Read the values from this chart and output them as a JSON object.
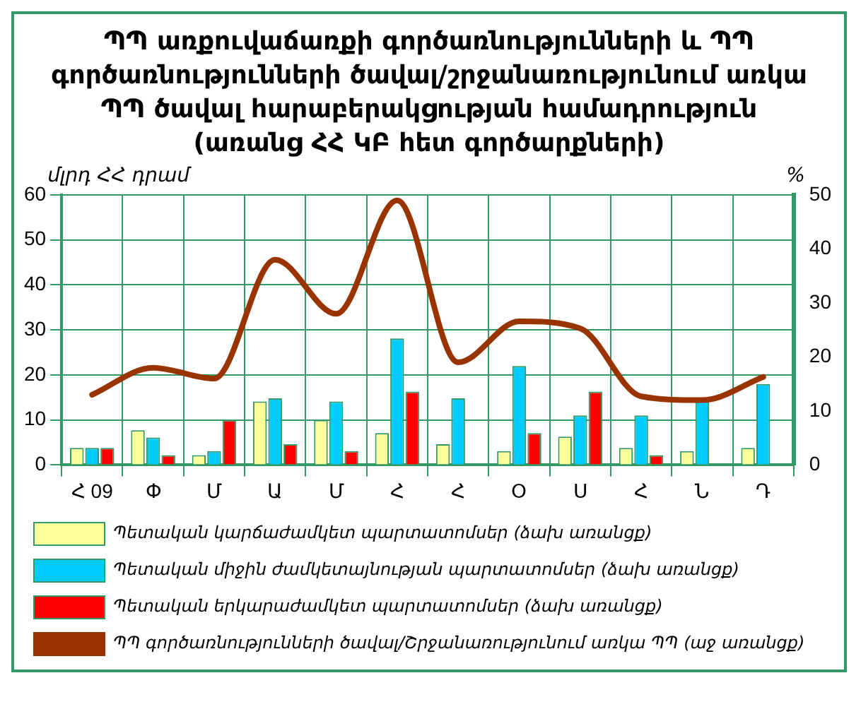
{
  "chart_data": {
    "type": "bar",
    "title": "ՊՊ առքուվաճառքի գործառնությունների և ՊՊ գործառնությունների ծավալ/շրջանառությունում առկա ՊՊ ծավալ հարաբերակցության համադրություն (առանց ՀՀ ԿԲ հետ գործարքների)",
    "ylabel": "մլրդ ՀՀ դրամ",
    "y2label": "%",
    "categories": [
      "Հ 09",
      "Փ",
      "Մ",
      "Ա",
      "Մ",
      "Հ",
      "Հ",
      "Օ",
      "Ս",
      "Հ",
      "Ն",
      "Դ"
    ],
    "series": [
      {
        "name": "Պետական կարճաժամկետ պարտատոմսեր (ձախ առանցք)",
        "color": "#ffff99",
        "values": [
          3.8,
          7.7,
          2.2,
          14.1,
          10,
          7.1,
          4.6,
          3.1,
          6.3,
          3.8,
          3.1,
          3.8
        ]
      },
      {
        "name": "Պետական միջին ժամկետայնության պարտատոմսեր (ձախ առանցք)",
        "color": "#00ccff",
        "values": [
          3.8,
          6.1,
          3.1,
          14.8,
          14.1,
          28.1,
          14.8,
          22,
          11,
          11,
          14.4,
          18
        ]
      },
      {
        "name": "Պետական երկարաժամկետ պարտատոմսեր (ձախ առանցք)",
        "color": "#ff0000",
        "values": [
          3.8,
          2.2,
          10,
          4.6,
          3.1,
          16.3,
          0,
          7.1,
          16.3,
          2.2,
          0,
          0
        ]
      },
      {
        "name": "ՊՊ գործառնությունների ծավալ/Շրջանառությունում առկա ՊՊ (աջ առանցք)",
        "type": "line",
        "axis": "y2",
        "color": "#993300",
        "values": [
          13,
          18,
          16,
          38,
          28,
          49,
          19,
          26.6,
          25.3,
          12.7,
          12,
          16.3
        ]
      }
    ],
    "ylim": [
      0,
      60
    ],
    "yticks": [
      0,
      10,
      20,
      30,
      40,
      50,
      60
    ],
    "y2lim": [
      0,
      50
    ],
    "y2ticks": [
      0,
      10,
      20,
      30,
      40,
      50
    ],
    "grid": true,
    "legend": "bottom",
    "marker": "none",
    "line_style": "solid"
  }
}
